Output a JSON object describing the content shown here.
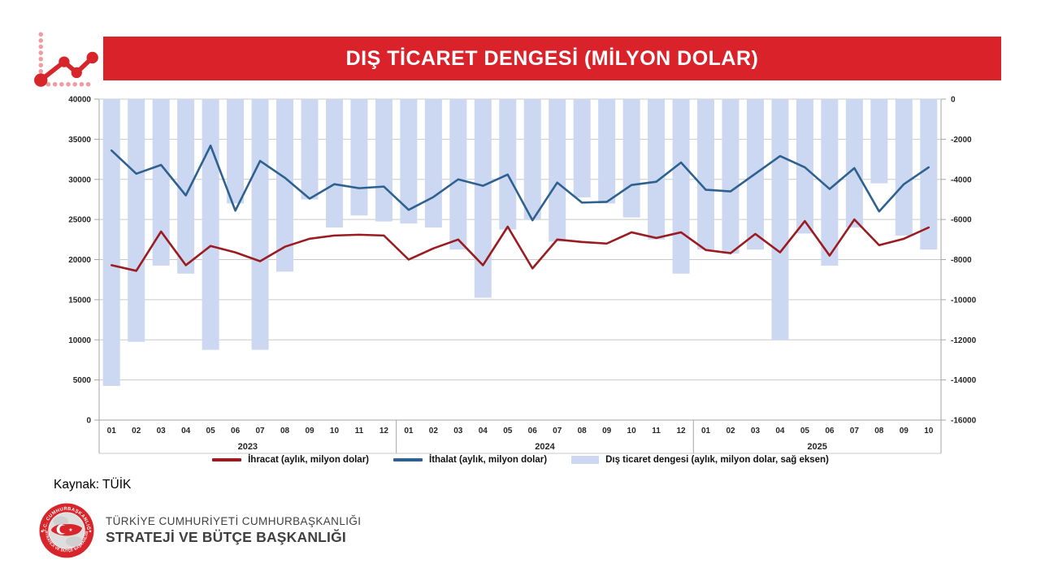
{
  "header": {
    "title": "DIŞ TİCARET DENGESİ (MİLYON DOLAR)",
    "banner_color": "#D9222A",
    "icon_color": "#D6252B",
    "icon_dot_color": "#F19CA0"
  },
  "chart_data": {
    "type": "combo-line-bar",
    "title": "DIŞ TİCARET DENGESİ (MİLYON DOLAR)",
    "grid": true,
    "legend_position": "bottom",
    "left_axis": {
      "min": 0,
      "max": 40000,
      "step": 5000,
      "ticks": [
        "40000",
        "35000",
        "30000",
        "25000",
        "20000",
        "15000",
        "10000",
        "5000",
        "0"
      ]
    },
    "right_axis": {
      "min": -16000,
      "max": 0,
      "step": 2000,
      "ticks": [
        "0",
        "-2000",
        "-4000",
        "-6000",
        "-8000",
        "-10000",
        "-12000",
        "-14000",
        "-16000"
      ]
    },
    "x_groups": [
      {
        "year": "2023",
        "months": [
          "01",
          "02",
          "03",
          "04",
          "05",
          "06",
          "07",
          "08",
          "09",
          "10",
          "11",
          "12"
        ]
      },
      {
        "year": "2024",
        "months": [
          "01",
          "02",
          "03",
          "04",
          "05",
          "06",
          "07",
          "08",
          "09",
          "10",
          "11",
          "12"
        ]
      },
      {
        "year": "2025",
        "months": [
          "01",
          "02",
          "03",
          "04",
          "05",
          "06",
          "07",
          "08",
          "09",
          "10"
        ]
      }
    ],
    "series": [
      {
        "name": "İhracat (aylık, milyon dolar)",
        "type": "line",
        "axis": "left",
        "color": "#9A1C20",
        "values": [
          19300,
          18600,
          23500,
          19300,
          21700,
          20900,
          19800,
          21600,
          22600,
          23000,
          23100,
          23000,
          20000,
          21400,
          22500,
          19300,
          24100,
          18900,
          22500,
          22200,
          22000,
          23400,
          22700,
          23400,
          21200,
          20800,
          23200,
          20900,
          24800,
          20500,
          25000,
          21800,
          22600,
          24000
        ]
      },
      {
        "name": "İthalat (aylık, milyon dolar)",
        "type": "line",
        "axis": "left",
        "color": "#2F618F",
        "values": [
          33600,
          30700,
          31800,
          28000,
          34200,
          26100,
          32300,
          30200,
          27600,
          29400,
          28900,
          29100,
          26200,
          27800,
          30000,
          29200,
          30600,
          24900,
          29600,
          27100,
          27200,
          29300,
          29700,
          32100,
          28700,
          28500,
          30700,
          32900,
          31500,
          28800,
          31400,
          26000,
          29400,
          31500
        ]
      },
      {
        "name": "Dış ticaret dengesi (aylık, milyon dolar, sağ eksen)",
        "type": "bar",
        "axis": "right",
        "color": "#CCD7F2",
        "values": [
          -14300,
          -12100,
          -8300,
          -8700,
          -12500,
          -5200,
          -12500,
          -8600,
          -5000,
          -6400,
          -5800,
          -6100,
          -6200,
          -6400,
          -7500,
          -9900,
          -6500,
          -6000,
          -7100,
          -4900,
          -5200,
          -5900,
          -7000,
          -8700,
          -7500,
          -7700,
          -7500,
          -12000,
          -6700,
          -8300,
          -6400,
          -4200,
          -6800,
          -7500
        ]
      }
    ]
  },
  "footer": {
    "source": "Kaynak: TÜİK",
    "org_line1": "TÜRKİYE CUMHURİYETİ CUMHURBAŞKANLIĞI",
    "org_line2": "STRATEJİ VE BÜTÇE BAŞKANLIĞI",
    "emblem_top_text": "T.C. CUMHURBAŞKANLIĞI",
    "emblem_bottom_text": "STRATEJİ VE BÜTÇE BAŞKANLIĞI",
    "emblem_color": "#D8252B"
  }
}
